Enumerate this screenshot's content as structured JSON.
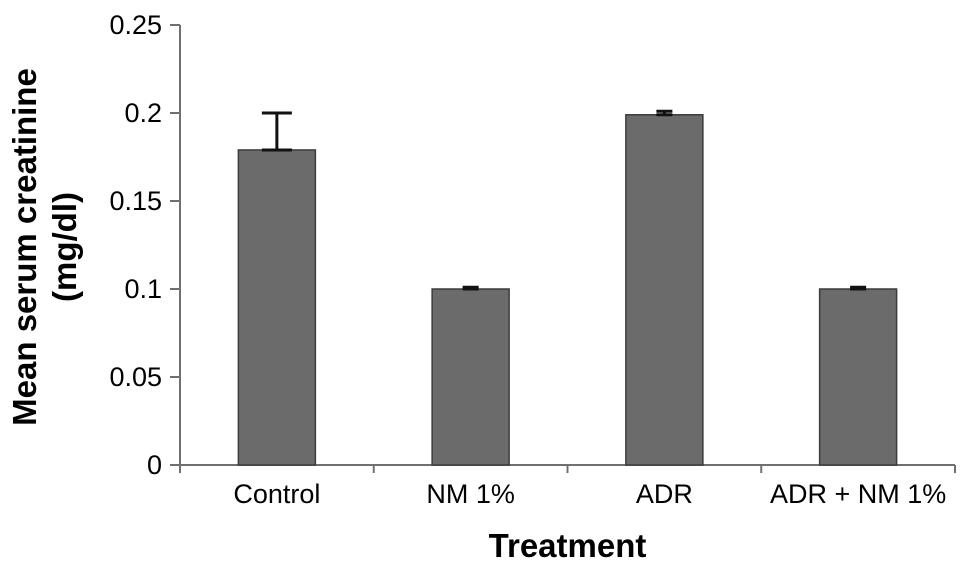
{
  "figure": {
    "background": "#ffffff"
  },
  "chart_data": {
    "type": "bar",
    "title": "",
    "xlabel": "Treatment",
    "ylabel": "Mean serum creatinine (mg/dl)",
    "ylabel_lines": [
      "Mean serum creatinine",
      "(mg/dl)"
    ],
    "categories": [
      "Control",
      "NM 1%",
      "ADR",
      "ADR + NM 1%"
    ],
    "values": [
      0.179,
      0.1,
      0.199,
      0.1
    ],
    "error_plus": [
      0.021,
      0.001,
      0.002,
      0.001
    ],
    "ylim": [
      0,
      0.25
    ],
    "yticks": [
      0,
      0.05,
      0.1,
      0.15,
      0.2,
      0.25
    ],
    "ytick_labels": [
      "0",
      "0.05",
      "0.1",
      "0.15",
      "0.2",
      "0.25"
    ],
    "grid": false,
    "legend": null,
    "bar_fill": "#6b6b6b",
    "bar_stroke": "#3c3c3c",
    "error_color": "#111111",
    "axis_color": "#707070",
    "text_color": "#000000"
  }
}
